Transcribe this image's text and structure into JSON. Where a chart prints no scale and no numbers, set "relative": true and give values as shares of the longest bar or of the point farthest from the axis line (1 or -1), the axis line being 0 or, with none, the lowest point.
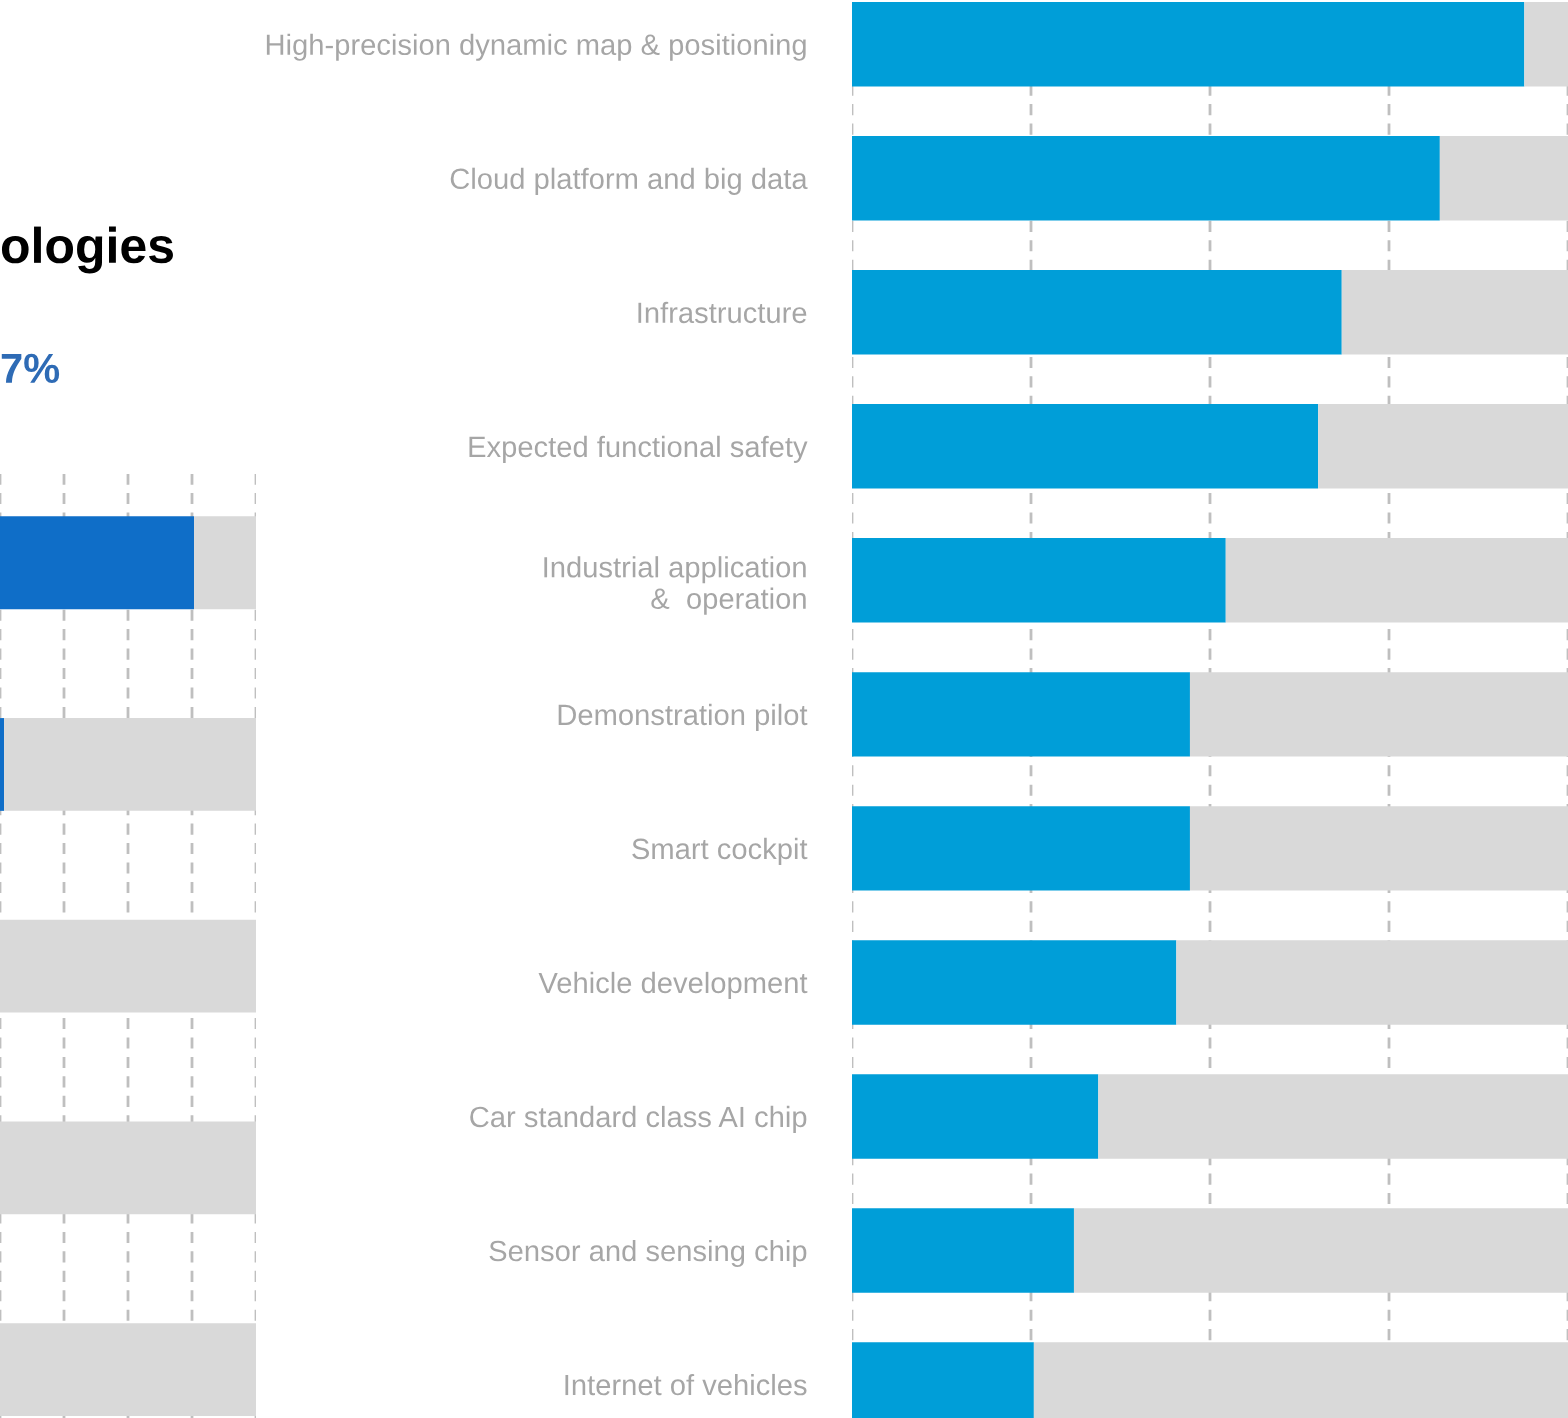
{
  "chart_data": [
    {
      "type": "bar",
      "title": "ologies",
      "subtitle": "7%",
      "orientation": "horizontal",
      "stacked": true,
      "relative": true,
      "grid": "x",
      "categories": [
        null,
        null,
        null,
        null,
        null
      ],
      "series": [
        {
          "color": "#0f6ec8",
          "values": [
            0.758,
            0.016,
            0,
            0,
            0
          ]
        },
        {
          "color": "#d9d9d9",
          "values": [
            0.242,
            0.984,
            1,
            1,
            1
          ]
        }
      ]
    },
    {
      "type": "bar",
      "orientation": "horizontal",
      "stacked": true,
      "relative": true,
      "grid": "x",
      "categories": [
        "High-precision dynamic map & positioning",
        "Cloud platform and big data",
        "Infrastructure",
        "Expected functional safety",
        "Industrial application\n&  operation",
        "Demonstration pilot",
        "Smart cockpit",
        "Vehicle development",
        "Car standard class AI chip",
        "Sensor and sensing chip",
        "Internet of vehicles"
      ],
      "series": [
        {
          "color": "#009ed8",
          "values": [
            0.939,
            0.821,
            0.684,
            0.651,
            0.522,
            0.472,
            0.472,
            0.453,
            0.344,
            0.31,
            0.254
          ]
        },
        {
          "color": "#d9d9d9",
          "values": [
            0.061,
            0.179,
            0.316,
            0.349,
            0.478,
            0.528,
            0.528,
            0.547,
            0.656,
            0.69,
            0.746
          ]
        }
      ]
    }
  ]
}
